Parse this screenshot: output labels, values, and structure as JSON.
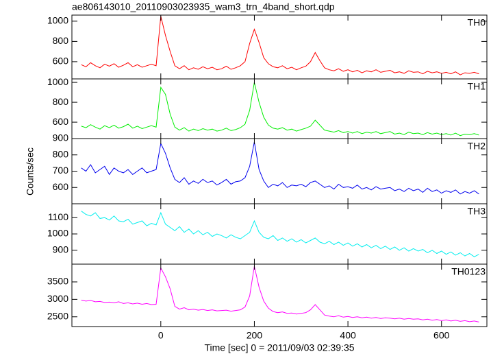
{
  "title": "ae806143010_20110903023935_wam3_trn_4band_short.qdp",
  "y_label": "Counts/sec",
  "x_label": "Time [sec] 0 = 2011/09/03 02:39:35",
  "chart_data": [
    {
      "type": "line",
      "xlim": [
        -190,
        697
      ],
      "xticks": [
        0,
        200,
        400,
        600
      ],
      "x": [
        -170,
        -160,
        -150,
        -140,
        -130,
        -120,
        -110,
        -100,
        -90,
        -80,
        -70,
        -60,
        -50,
        -40,
        -30,
        -20,
        -10,
        0,
        10,
        20,
        30,
        40,
        50,
        60,
        70,
        80,
        90,
        100,
        110,
        120,
        130,
        140,
        150,
        160,
        170,
        180,
        190,
        200,
        210,
        220,
        230,
        240,
        250,
        260,
        270,
        280,
        290,
        300,
        310,
        320,
        330,
        340,
        350,
        360,
        370,
        380,
        390,
        400,
        410,
        420,
        430,
        440,
        450,
        460,
        470,
        480,
        490,
        500,
        510,
        520,
        530,
        540,
        550,
        560,
        570,
        580,
        590,
        600,
        610,
        620,
        630,
        640,
        650,
        660,
        670,
        680
      ],
      "ylim": [
        430,
        1060
      ],
      "yticks": [
        600,
        800,
        1000
      ],
      "series": [
        {
          "name": "TH0",
          "color": "#ff0000",
          "values": [
            570,
            550,
            590,
            560,
            540,
            575,
            555,
            580,
            545,
            565,
            590,
            550,
            570,
            545,
            560,
            575,
            560,
            1050,
            860,
            700,
            560,
            530,
            560,
            520,
            540,
            525,
            550,
            530,
            545,
            520,
            530,
            555,
            525,
            540,
            560,
            600,
            780,
            920,
            790,
            640,
            580,
            550,
            540,
            560,
            530,
            545,
            520,
            540,
            555,
            600,
            690,
            610,
            540,
            520,
            510,
            530,
            505,
            520,
            500,
            515,
            490,
            510,
            500,
            520,
            495,
            505,
            515,
            490,
            500,
            485,
            510,
            495,
            500,
            480,
            505,
            490,
            500,
            485,
            495,
            480,
            500,
            470,
            490,
            485,
            495,
            480
          ]
        }
      ]
    },
    {
      "type": "line",
      "xlim": [
        -190,
        697
      ],
      "xticks": [
        0,
        200,
        400,
        600
      ],
      "x": [
        -170,
        -160,
        -150,
        -140,
        -130,
        -120,
        -110,
        -100,
        -90,
        -80,
        -70,
        -60,
        -50,
        -40,
        -30,
        -20,
        -10,
        0,
        10,
        20,
        30,
        40,
        50,
        60,
        70,
        80,
        90,
        100,
        110,
        120,
        130,
        140,
        150,
        160,
        170,
        180,
        190,
        200,
        210,
        220,
        230,
        240,
        250,
        260,
        270,
        280,
        290,
        300,
        310,
        320,
        330,
        340,
        350,
        360,
        370,
        380,
        390,
        400,
        410,
        420,
        430,
        440,
        450,
        460,
        470,
        480,
        490,
        500,
        510,
        520,
        530,
        540,
        550,
        560,
        570,
        580,
        590,
        600,
        610,
        620,
        630,
        640,
        650,
        660,
        670,
        680
      ],
      "ylim": [
        435,
        1035
      ],
      "yticks": [
        600,
        800,
        1000
      ],
      "series": [
        {
          "name": "TH1",
          "color": "#00ee00",
          "values": [
            560,
            545,
            575,
            550,
            530,
            565,
            545,
            570,
            540,
            555,
            580,
            540,
            560,
            535,
            550,
            565,
            550,
            950,
            880,
            680,
            550,
            520,
            545,
            510,
            530,
            515,
            535,
            520,
            530,
            510,
            520,
            540,
            515,
            525,
            545,
            580,
            720,
            1000,
            800,
            650,
            570,
            540,
            530,
            545,
            520,
            530,
            510,
            525,
            540,
            560,
            620,
            570,
            520,
            510,
            500,
            515,
            495,
            505,
            490,
            505,
            485,
            500,
            490,
            505,
            485,
            495,
            505,
            480,
            490,
            475,
            500,
            485,
            490,
            475,
            495,
            480,
            490,
            475,
            485,
            470,
            490,
            465,
            480,
            475,
            485,
            470
          ]
        }
      ]
    },
    {
      "type": "line",
      "xlim": [
        -190,
        697
      ],
      "xticks": [
        0,
        200,
        400,
        600
      ],
      "x": [
        -170,
        -160,
        -150,
        -140,
        -130,
        -120,
        -110,
        -100,
        -90,
        -80,
        -70,
        -60,
        -50,
        -40,
        -30,
        -20,
        -10,
        0,
        10,
        20,
        30,
        40,
        50,
        60,
        70,
        80,
        90,
        100,
        110,
        120,
        130,
        140,
        150,
        160,
        170,
        180,
        190,
        200,
        210,
        220,
        230,
        240,
        250,
        260,
        270,
        280,
        290,
        300,
        310,
        320,
        330,
        340,
        350,
        360,
        370,
        380,
        390,
        400,
        410,
        420,
        430,
        440,
        450,
        460,
        470,
        480,
        490,
        500,
        510,
        520,
        530,
        540,
        550,
        560,
        570,
        580,
        590,
        600,
        610,
        620,
        630,
        640,
        650,
        660,
        670,
        680
      ],
      "ylim": [
        500,
        900
      ],
      "yticks": [
        600,
        700,
        800,
        900
      ],
      "series": [
        {
          "name": "TH2",
          "color": "#0000ee",
          "values": [
            720,
            700,
            740,
            690,
            710,
            730,
            680,
            720,
            700,
            690,
            710,
            680,
            700,
            720,
            690,
            700,
            710,
            870,
            810,
            720,
            650,
            630,
            660,
            620,
            640,
            625,
            650,
            630,
            640,
            615,
            630,
            650,
            620,
            635,
            640,
            660,
            730,
            880,
            710,
            640,
            600,
            620,
            610,
            630,
            600,
            615,
            610,
            620,
            605,
            630,
            640,
            620,
            600,
            610,
            590,
            620,
            600,
            605,
            595,
            615,
            590,
            600,
            585,
            605,
            590,
            595,
            600,
            580,
            590,
            575,
            595,
            580,
            590,
            570,
            595,
            575,
            585,
            565,
            580,
            570,
            585,
            560,
            575,
            565,
            580,
            560
          ]
        }
      ]
    },
    {
      "type": "line",
      "xlim": [
        -190,
        697
      ],
      "xticks": [
        0,
        200,
        400,
        600
      ],
      "x": [
        -170,
        -160,
        -150,
        -140,
        -130,
        -120,
        -110,
        -100,
        -90,
        -80,
        -70,
        -60,
        -50,
        -40,
        -30,
        -20,
        -10,
        0,
        10,
        20,
        30,
        40,
        50,
        60,
        70,
        80,
        90,
        100,
        110,
        120,
        130,
        140,
        150,
        160,
        170,
        180,
        190,
        200,
        210,
        220,
        230,
        240,
        250,
        260,
        270,
        280,
        290,
        300,
        310,
        320,
        330,
        340,
        350,
        360,
        370,
        380,
        390,
        400,
        410,
        420,
        430,
        440,
        450,
        460,
        470,
        480,
        490,
        500,
        510,
        520,
        530,
        540,
        550,
        560,
        570,
        580,
        590,
        600,
        610,
        620,
        630,
        640,
        650,
        660,
        670,
        680
      ],
      "ylim": [
        815,
        1185
      ],
      "yticks": [
        900,
        1000,
        1100
      ],
      "series": [
        {
          "name": "TH3",
          "color": "#00eeee",
          "values": [
            1140,
            1120,
            1110,
            1130,
            1095,
            1100,
            1085,
            1110,
            1080,
            1075,
            1090,
            1060,
            1070,
            1080,
            1050,
            1065,
            1055,
            1130,
            1060,
            1040,
            1020,
            1045,
            1010,
            1030,
            1000,
            1020,
            995,
            1010,
            985,
            1000,
            990,
            975,
            995,
            980,
            970,
            990,
            1010,
            1080,
            1010,
            980,
            970,
            990,
            960,
            975,
            955,
            970,
            950,
            965,
            945,
            960,
            975,
            950,
            940,
            955,
            935,
            950,
            930,
            945,
            925,
            940,
            920,
            935,
            915,
            930,
            910,
            925,
            905,
            920,
            900,
            915,
            895,
            910,
            895,
            905,
            885,
            900,
            880,
            895,
            875,
            890,
            870,
            885,
            865,
            880,
            860,
            875
          ]
        }
      ]
    },
    {
      "type": "line",
      "xlim": [
        -190,
        697
      ],
      "xticks": [
        0,
        200,
        400,
        600
      ],
      "x": [
        -170,
        -160,
        -150,
        -140,
        -130,
        -120,
        -110,
        -100,
        -90,
        -80,
        -70,
        -60,
        -50,
        -40,
        -30,
        -20,
        -10,
        0,
        10,
        20,
        30,
        40,
        50,
        60,
        70,
        80,
        90,
        100,
        110,
        120,
        130,
        140,
        150,
        160,
        170,
        180,
        190,
        200,
        210,
        220,
        230,
        240,
        250,
        260,
        270,
        280,
        290,
        300,
        310,
        320,
        330,
        340,
        350,
        360,
        370,
        380,
        390,
        400,
        410,
        420,
        430,
        440,
        450,
        460,
        470,
        480,
        490,
        500,
        510,
        520,
        530,
        540,
        550,
        560,
        570,
        580,
        590,
        600,
        610,
        620,
        630,
        640,
        650,
        660,
        670,
        680
      ],
      "ylim": [
        2220,
        4010
      ],
      "yticks": [
        2500,
        3000,
        3500
      ],
      "series": [
        {
          "name": "TH0123",
          "color": "#ff00ff",
          "values": [
            2980,
            2950,
            2970,
            2930,
            2940,
            2910,
            2920,
            2900,
            2930,
            2880,
            2900,
            2870,
            2890,
            2860,
            2880,
            2850,
            2860,
            3900,
            3650,
            3300,
            2800,
            2720,
            2760,
            2700,
            2720,
            2690,
            2710,
            2680,
            2700,
            2670,
            2680,
            2690,
            2660,
            2680,
            2700,
            2780,
            3100,
            3950,
            3350,
            2950,
            2750,
            2650,
            2620,
            2640,
            2600,
            2610,
            2580,
            2600,
            2620,
            2700,
            2850,
            2700,
            2550,
            2520,
            2500,
            2530,
            2490,
            2510,
            2480,
            2500,
            2470,
            2490,
            2460,
            2480,
            2450,
            2470,
            2460,
            2440,
            2460,
            2430,
            2450,
            2430,
            2440,
            2410,
            2430,
            2400,
            2420,
            2390,
            2410,
            2380,
            2400,
            2370,
            2390,
            2360,
            2380,
            2350
          ]
        }
      ]
    }
  ]
}
